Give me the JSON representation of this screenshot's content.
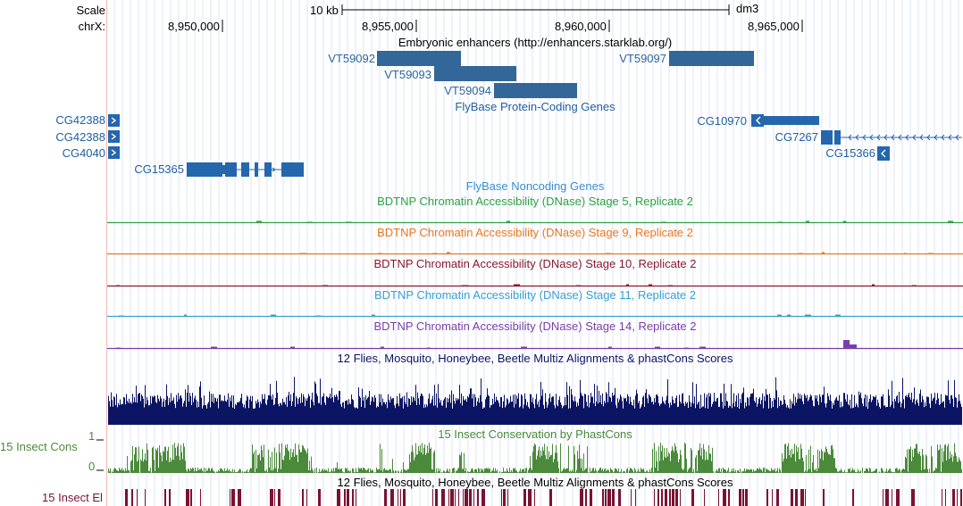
{
  "ruler": {
    "scale_label": "Scale",
    "chrom_label": "chrX:",
    "scale_bar_text": "10 kb",
    "assembly": "dm3",
    "positions": [
      "8,950,000",
      "8,955,000",
      "8,960,000",
      "8,965,000"
    ]
  },
  "enhancers": {
    "title": "Embryonic enhancers (http://enhancers.starklab.org/)",
    "items": [
      "VT59092",
      "VT59093",
      "VT59094",
      "VT59097"
    ]
  },
  "genes": {
    "title": "FlyBase Protein-Coding Genes",
    "items": [
      "CG42388",
      "CG42388",
      "CG4040",
      "CG15365",
      "CG10970",
      "CG7267",
      "CG15366"
    ]
  },
  "noncoding": {
    "title": "FlyBase Noncoding Genes"
  },
  "dnase_tracks": [
    {
      "title": "BDTNP Chromatin Accessibility (DNase) Stage 5, Replicate 2",
      "color": "#2ea043"
    },
    {
      "title": "BDTNP Chromatin Accessibility (DNase) Stage 9, Replicate 2",
      "color": "#e8781e"
    },
    {
      "title": "BDTNP Chromatin Accessibility (DNase) Stage 10, Replicate 2",
      "color": "#8b1a2e"
    },
    {
      "title": "BDTNP Chromatin Accessibility (DNase) Stage 11, Replicate 2",
      "color": "#3aa0d0"
    },
    {
      "title": "BDTNP Chromatin Accessibility (DNase) Stage 14, Replicate 2",
      "color": "#7a3fa8"
    }
  ],
  "multiz": {
    "title": "12 Flies, Mosquito, Honeybee, Beetle Multiz Alignments & phastCons Scores",
    "color": "#0c1464"
  },
  "phastcons": {
    "title": "15 Insect Conservation by PhastCons",
    "side_label": "15 Insect Cons",
    "y_max": "1",
    "y_min": "0",
    "color": "#4a8a3a"
  },
  "elements": {
    "title": "12 Flies, Mosquito, Honeybee, Beetle Multiz Alignments & phastCons Scores",
    "side_label": "15 Insect El",
    "color": "#7a1232"
  }
}
